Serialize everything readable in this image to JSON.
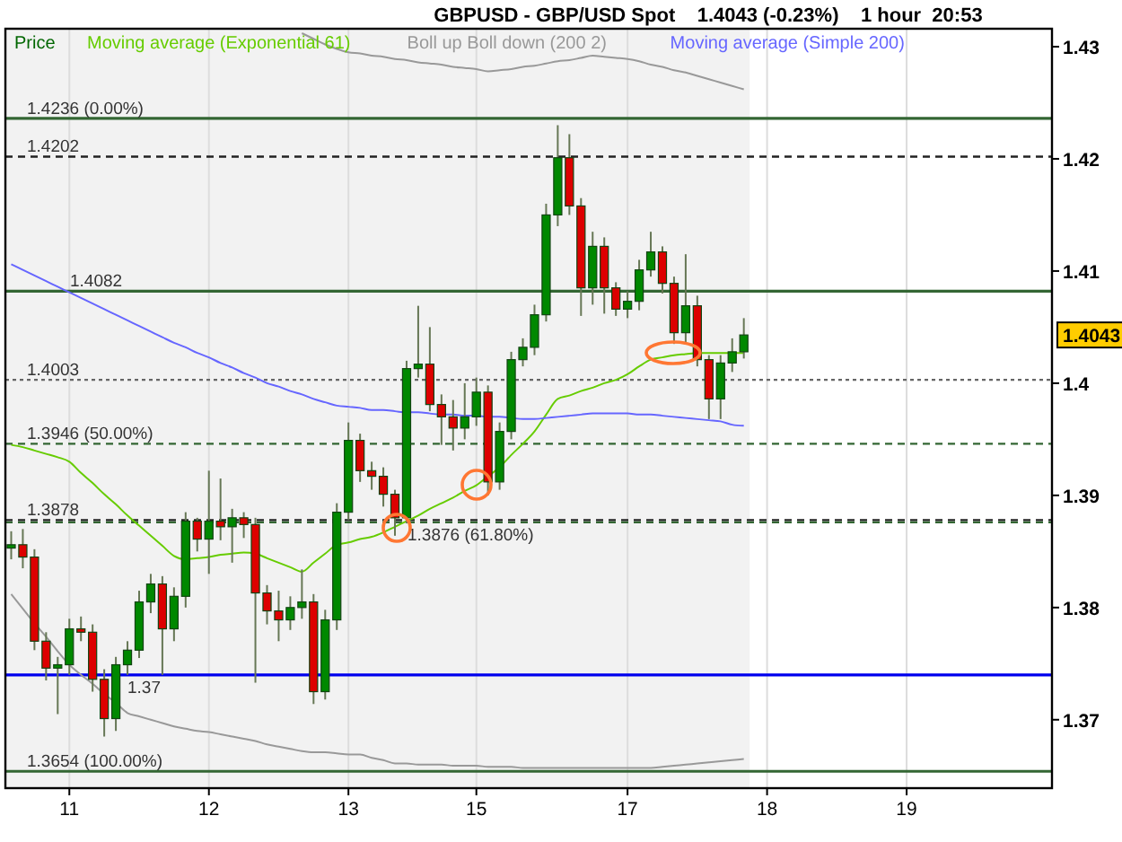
{
  "chart_data": {
    "type": "candlestick",
    "title": "GBPUSD - GBP/USD Spot    1.4043 (-0.23%)    1 hour  20:53",
    "categories": [
      null,
      null,
      null,
      null,
      null,
      "11",
      null,
      null,
      null,
      null,
      null,
      null,
      null,
      null,
      null,
      null,
      null,
      "12",
      null,
      null,
      null,
      null,
      null,
      null,
      null,
      null,
      null,
      null,
      null,
      "13",
      null,
      null,
      null,
      null,
      null,
      null,
      null,
      null,
      null,
      null,
      "15",
      null,
      null,
      null,
      null,
      null,
      null,
      null,
      null,
      null,
      null,
      null,
      null,
      "17",
      null,
      null,
      null,
      null,
      null,
      null,
      null,
      null,
      null,
      null,
      null,
      "18",
      null,
      null,
      null,
      null,
      null,
      null,
      null,
      null,
      null,
      null,
      null,
      "19",
      null,
      null,
      null,
      null,
      null,
      null,
      null,
      null,
      null,
      null,
      null,
      null
    ],
    "ylim": [
      1.3639,
      1.4316
    ],
    "yticks": [
      1.37,
      1.38,
      1.39,
      1.4,
      1.41,
      1.42,
      1.43
    ],
    "grid": "x",
    "legend": "top left",
    "ref_lines": [
      {
        "axis": "y",
        "value": 1.4236,
        "label": "1.4236 (0.00%)",
        "color": "#336633",
        "line_style": "solid"
      },
      {
        "axis": "y",
        "value": 1.4202,
        "label": "1.4202",
        "color": "#222222",
        "line_style": "dashed"
      },
      {
        "axis": "y",
        "value": 1.4082,
        "label": "1.4082",
        "color": "#336633",
        "line_style": "solid"
      },
      {
        "axis": "y",
        "value": 1.4003,
        "label": "1.4003",
        "color": "#666666",
        "line_style": "dotted"
      },
      {
        "axis": "y",
        "value": 1.3946,
        "label": "1.3946 (50.00%)",
        "color": "#336633",
        "line_style": "dashed"
      },
      {
        "axis": "y",
        "value": 1.3878,
        "label": "1.3878",
        "color": "#222222",
        "line_style": "dashed"
      },
      {
        "axis": "y",
        "value": 1.3876,
        "label": "1.3876 (61.80%)",
        "color": "#336633",
        "line_style": "dashed"
      },
      {
        "axis": "y",
        "value": 1.374,
        "label": "1.37",
        "color": "#0000ee",
        "line_style": "solid"
      },
      {
        "axis": "y",
        "value": 1.3654,
        "label": "1.3654 (100.00%)",
        "color": "#336633",
        "line_style": "solid"
      }
    ],
    "annotations": [
      "1.4043"
    ],
    "series": [
      {
        "name": "Price",
        "color": "#006600",
        "ohlc": [
          [
            1.3853,
            1.3868,
            1.3843,
            1.3856
          ],
          [
            1.3856,
            1.387,
            1.3835,
            1.3845
          ],
          [
            1.3845,
            1.3852,
            1.3762,
            1.377
          ],
          [
            1.377,
            1.3778,
            1.3735,
            1.3746
          ],
          [
            1.3746,
            1.3756,
            1.3705,
            1.3749
          ],
          [
            1.3749,
            1.379,
            1.374,
            1.3781
          ],
          [
            1.3781,
            1.3792,
            1.377,
            1.3778
          ],
          [
            1.3778,
            1.3785,
            1.3725,
            1.3736
          ],
          [
            1.3736,
            1.3745,
            1.3685,
            1.3701
          ],
          [
            1.3701,
            1.3756,
            1.369,
            1.3749
          ],
          [
            1.3749,
            1.377,
            1.374,
            1.3762
          ],
          [
            1.3762,
            1.3815,
            1.3755,
            1.3805
          ],
          [
            1.3805,
            1.383,
            1.3795,
            1.3821
          ],
          [
            1.3821,
            1.3828,
            1.374,
            1.3781
          ],
          [
            1.3781,
            1.3818,
            1.377,
            1.381
          ],
          [
            1.381,
            1.3885,
            1.38,
            1.3877
          ],
          [
            1.3877,
            1.388,
            1.385,
            1.3861
          ],
          [
            1.3861,
            1.3922,
            1.383,
            1.3877
          ],
          [
            1.3877,
            1.3915,
            1.386,
            1.3872
          ],
          [
            1.3872,
            1.3888,
            1.384,
            1.388
          ],
          [
            1.388,
            1.3885,
            1.3862,
            1.3874
          ],
          [
            1.3874,
            1.388,
            1.3733,
            1.3813
          ],
          [
            1.3813,
            1.382,
            1.3785,
            1.3797
          ],
          [
            1.3797,
            1.3815,
            1.377,
            1.3789
          ],
          [
            1.3789,
            1.381,
            1.378,
            1.38
          ],
          [
            1.38,
            1.3834,
            1.379,
            1.3805
          ],
          [
            1.3805,
            1.3812,
            1.3714,
            1.3725
          ],
          [
            1.3725,
            1.3798,
            1.3718,
            1.3789
          ],
          [
            1.3789,
            1.3893,
            1.378,
            1.3885
          ],
          [
            1.3885,
            1.3965,
            1.3878,
            1.3949
          ],
          [
            1.3949,
            1.3955,
            1.3912,
            1.3922
          ],
          [
            1.3922,
            1.393,
            1.3905,
            1.3917
          ],
          [
            1.3917,
            1.3925,
            1.389,
            1.3901
          ],
          [
            1.3901,
            1.3905,
            1.3864,
            1.388
          ],
          [
            1.388,
            1.402,
            1.3875,
            1.4013
          ],
          [
            1.4013,
            1.4069,
            1.4005,
            1.4017
          ],
          [
            1.4017,
            1.405,
            1.3975,
            1.3981
          ],
          [
            1.3981,
            1.399,
            1.3945,
            1.397
          ],
          [
            1.397,
            1.3985,
            1.394,
            1.396
          ],
          [
            1.396,
            1.4,
            1.395,
            1.397
          ],
          [
            1.397,
            1.4005,
            1.3962,
            1.3992
          ],
          [
            1.3992,
            1.3998,
            1.39,
            1.3912
          ],
          [
            1.3912,
            1.3965,
            1.3905,
            1.3957
          ],
          [
            1.3957,
            1.4028,
            1.395,
            1.4021
          ],
          [
            1.4021,
            1.404,
            1.4015,
            1.4032
          ],
          [
            1.4032,
            1.407,
            1.4025,
            1.4061
          ],
          [
            1.4061,
            1.416,
            1.4055,
            1.415
          ],
          [
            1.415,
            1.423,
            1.414,
            1.4201
          ],
          [
            1.4201,
            1.4222,
            1.415,
            1.4158
          ],
          [
            1.4158,
            1.4165,
            1.406,
            1.4085
          ],
          [
            1.4085,
            1.4135,
            1.407,
            1.4122
          ],
          [
            1.4122,
            1.413,
            1.4062,
            1.4085
          ],
          [
            1.4085,
            1.409,
            1.406,
            1.4066
          ],
          [
            1.4066,
            1.4082,
            1.4058,
            1.4073
          ],
          [
            1.4073,
            1.411,
            1.4065,
            1.4101
          ],
          [
            1.4101,
            1.4135,
            1.4095,
            1.4117
          ],
          [
            1.4117,
            1.4122,
            1.408,
            1.4089
          ],
          [
            1.4089,
            1.4095,
            1.4035,
            1.4045
          ],
          [
            1.4045,
            1.4115,
            1.4035,
            1.4069
          ],
          [
            1.4069,
            1.4078,
            1.4015,
            1.4021
          ],
          [
            1.4021,
            1.4025,
            1.3968,
            1.3986
          ],
          [
            1.3986,
            1.4025,
            1.3968,
            1.4018
          ],
          [
            1.4018,
            1.404,
            1.401,
            1.4028
          ],
          [
            1.4028,
            1.4058,
            1.4022,
            1.4043
          ],
          null,
          null,
          null,
          null,
          null,
          null,
          null,
          null,
          null,
          null,
          null,
          null,
          null,
          null,
          null,
          null,
          null,
          null,
          null,
          null,
          null,
          null,
          null,
          null,
          null,
          null
        ],
        "colors": [
          "#008800",
          "#dd0000",
          "#dd0000",
          "#dd0000",
          "#008800",
          "#008800",
          "#dd0000",
          "#dd0000",
          "#dd0000",
          "#008800",
          "#008800",
          "#008800",
          "#008800",
          "#dd0000",
          "#008800",
          "#008800",
          "#dd0000",
          "#008800",
          "#dd0000",
          "#008800",
          "#dd0000",
          "#dd0000",
          "#dd0000",
          "#dd0000",
          "#008800",
          "#008800",
          "#dd0000",
          "#008800",
          "#008800",
          "#008800",
          "#dd0000",
          "#dd0000",
          "#dd0000",
          "#dd0000",
          "#008800",
          "#008800",
          "#dd0000",
          "#dd0000",
          "#dd0000",
          "#008800",
          "#008800",
          "#dd0000",
          "#008800",
          "#008800",
          "#008800",
          "#008800",
          "#008800",
          "#008800",
          "#dd0000",
          "#dd0000",
          "#008800",
          "#dd0000",
          "#dd0000",
          "#008800",
          "#008800",
          "#008800",
          "#dd0000",
          "#dd0000",
          "#008800",
          "#dd0000",
          "#dd0000",
          "#008800",
          "#008800",
          "#008800",
          null,
          null,
          null,
          null,
          null,
          null,
          null,
          null,
          null,
          null,
          null,
          null,
          null,
          null,
          null,
          null,
          null,
          null,
          null,
          null,
          null,
          null,
          null,
          null,
          null,
          null
        ]
      },
      {
        "name": "Moving average (Exponential 61)",
        "type": "line",
        "color": "#66cc00",
        "values": [
          1.3945,
          1.3943,
          1.394,
          1.3937,
          1.3934,
          1.393,
          1.392,
          1.3911,
          1.3901,
          1.3892,
          1.3882,
          1.3873,
          1.3864,
          1.3855,
          1.3846,
          1.3843,
          1.3844,
          1.3845,
          1.3847,
          1.3848,
          1.3849,
          1.3848,
          1.3844,
          1.384,
          1.3836,
          1.3832,
          1.384,
          1.3848,
          1.3856,
          1.3858,
          1.3861,
          1.3863,
          1.3867,
          1.3872,
          1.3877,
          1.3882,
          1.3888,
          1.3893,
          1.3898,
          1.3904,
          1.3909,
          1.3917,
          1.3925,
          1.3936,
          1.3946,
          1.3957,
          1.3972,
          1.3986,
          1.3989,
          1.3993,
          1.3996,
          1.4,
          1.4003,
          1.4008,
          1.4015,
          1.4021,
          1.4023,
          1.4025,
          1.4026,
          1.4027,
          1.4027,
          1.4027,
          1.4027,
          1.4027,
          null,
          null,
          null,
          null,
          null,
          null,
          null,
          null,
          null,
          null,
          null,
          null,
          null,
          null,
          null,
          null,
          null,
          null,
          null,
          null,
          null,
          null,
          null,
          null,
          null,
          null
        ]
      },
      {
        "name": "Boll up Boll down (200 2)",
        "type": "line",
        "color": "#999999",
        "values": [
          null,
          null,
          null,
          null,
          null,
          null,
          null,
          null,
          null,
          null,
          null,
          null,
          null,
          null,
          null,
          null,
          null,
          null,
          null,
          null,
          null,
          null,
          null,
          null,
          null,
          1.4312,
          1.4307,
          1.4302,
          1.4298,
          1.4295,
          1.4294,
          1.4292,
          1.4291,
          1.4289,
          1.4288,
          1.4286,
          1.4285,
          1.4284,
          1.4282,
          1.4281,
          1.428,
          1.4278,
          1.4279,
          1.428,
          1.4282,
          1.4283,
          1.4285,
          1.4287,
          1.4288,
          1.429,
          1.4292,
          1.4291,
          1.429,
          1.4289,
          1.4287,
          1.4284,
          1.4282,
          1.4279,
          1.4277,
          1.4274,
          1.4271,
          1.4268,
          1.4265,
          1.4262,
          null,
          null,
          null,
          null,
          null,
          null,
          null,
          null,
          null,
          null,
          null,
          null,
          null,
          null,
          null,
          null,
          null,
          null,
          null,
          null,
          null,
          null,
          null,
          null,
          null,
          null
        ]
      },
      {
        "type": "line",
        "color": "#999999",
        "values": [
          1.3812,
          1.3799,
          1.3786,
          1.3774,
          1.3761,
          1.3749,
          1.374,
          1.3732,
          1.3723,
          1.3715,
          1.3706,
          1.3703,
          1.37,
          1.3697,
          1.3694,
          1.3692,
          1.369,
          1.3689,
          1.3687,
          1.3685,
          1.3683,
          1.3681,
          1.3678,
          1.3676,
          1.3674,
          1.3672,
          1.3671,
          1.3671,
          1.367,
          1.3669,
          1.3669,
          1.3666,
          1.3664,
          1.3661,
          1.3661,
          1.366,
          1.366,
          1.366,
          1.3659,
          1.3659,
          1.3659,
          1.3658,
          1.3658,
          1.3658,
          1.3657,
          1.3657,
          1.3657,
          1.3657,
          1.3657,
          1.3657,
          1.3657,
          1.3657,
          1.3657,
          1.3657,
          1.3657,
          1.3657,
          1.3658,
          1.3659,
          1.366,
          1.3661,
          1.3662,
          1.3663,
          1.3664,
          1.3665,
          null,
          null,
          null,
          null,
          null,
          null,
          null,
          null,
          null,
          null,
          null,
          null,
          null,
          null,
          null,
          null,
          null,
          null,
          null,
          null,
          null,
          null,
          null,
          null,
          null,
          null
        ]
      },
      {
        "name": "Moving average (Simple 200)",
        "type": "line",
        "color": "#6666ff",
        "values": [
          1.4106,
          1.4101,
          1.4096,
          1.4091,
          1.4086,
          1.4081,
          1.4076,
          1.4071,
          1.4066,
          1.4061,
          1.4056,
          1.4051,
          1.4046,
          1.4041,
          1.4036,
          1.4032,
          1.4027,
          1.4023,
          1.4018,
          1.4014,
          1.4009,
          1.4005,
          1.4,
          1.3997,
          1.3993,
          1.399,
          1.3986,
          1.3983,
          1.398,
          1.3979,
          1.3978,
          1.3976,
          1.3976,
          1.3975,
          1.3974,
          1.3974,
          1.3973,
          1.3972,
          1.3972,
          1.3971,
          1.3971,
          1.397,
          1.397,
          1.3969,
          1.3968,
          1.3968,
          1.3969,
          1.397,
          1.3971,
          1.3972,
          1.3973,
          1.3973,
          1.3973,
          1.3973,
          1.3972,
          1.3972,
          1.3971,
          1.397,
          1.3969,
          1.3968,
          1.3967,
          1.3966,
          1.3963,
          1.3962,
          null,
          null,
          null,
          null,
          null,
          null,
          null,
          null,
          null,
          null,
          null,
          null,
          null,
          null,
          null,
          null,
          null,
          null,
          null,
          null,
          null,
          null,
          null,
          null,
          null,
          null
        ]
      }
    ]
  }
}
